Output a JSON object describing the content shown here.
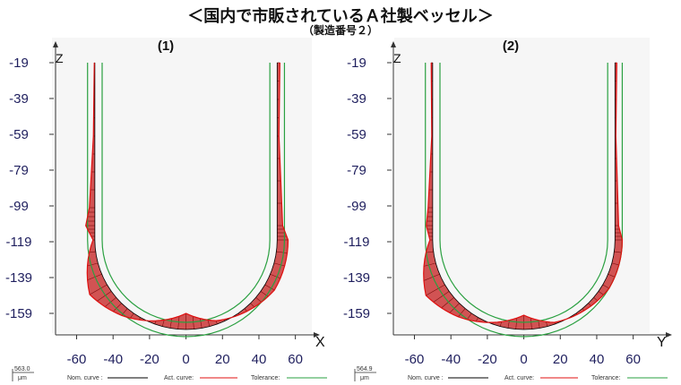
{
  "title": "＜国内で市販されているＡ社製ベッセル＞",
  "subtitle": "（製造番号２）",
  "colors": {
    "nominal": "#000000",
    "actual": "#e01010",
    "tolerance": "#2aa040",
    "text": "#1f1f5e",
    "deviation_fill": "#c41c1c"
  },
  "legend": {
    "nominal": "Nom. curve :",
    "actual": "Act. curve:",
    "tolerance": "Tolerance:"
  },
  "chart_data": [
    {
      "type": "line",
      "panel_label": "(1)",
      "xlabel": "X",
      "ylabel": "Z",
      "x_ticks": [
        -60,
        -40,
        -20,
        0,
        20,
        40,
        60
      ],
      "y_ticks": [
        -19,
        -39,
        -59,
        -79,
        -99,
        -119,
        -139,
        -159
      ],
      "xlim": [
        -75,
        70
      ],
      "ylim": [
        -170,
        -15
      ],
      "scale_value": "563.0",
      "scale_unit": "μm",
      "nominal_profile": {
        "radius": 50,
        "center_z": -118,
        "top_z": -19
      },
      "tolerance_offset": 4,
      "deviation_profile": [
        {
          "side": "left",
          "z": -19,
          "dev": 0.3
        },
        {
          "side": "left",
          "z": -60,
          "dev": 0.8
        },
        {
          "side": "left",
          "z": -100,
          "dev": 3
        },
        {
          "side": "left",
          "z": -110,
          "dev": 5
        },
        {
          "side": "left",
          "z": -118,
          "dev": 1
        },
        {
          "side": "arc",
          "angle": -60,
          "dev": 11
        },
        {
          "side": "arc",
          "angle": -40,
          "dev": 5
        },
        {
          "side": "arc",
          "angle": -20,
          "dev": -2
        },
        {
          "side": "arc",
          "angle": 0,
          "dev": -9
        },
        {
          "side": "arc",
          "angle": 20,
          "dev": -2
        },
        {
          "side": "arc",
          "angle": 40,
          "dev": 2
        },
        {
          "side": "arc",
          "angle": 60,
          "dev": 6
        },
        {
          "side": "right",
          "z": -118,
          "dev": 6
        },
        {
          "side": "right",
          "z": -110,
          "dev": 3
        },
        {
          "side": "right",
          "z": -60,
          "dev": 1
        },
        {
          "side": "right",
          "z": -19,
          "dev": 1.5
        }
      ]
    },
    {
      "type": "line",
      "panel_label": "(2)",
      "xlabel": "Y",
      "ylabel": "Z",
      "x_ticks": [
        -60,
        -40,
        -20,
        0,
        20,
        40,
        60
      ],
      "y_ticks": [
        -19,
        -39,
        -59,
        -79,
        -99,
        -119,
        -139,
        -159
      ],
      "xlim": [
        -75,
        70
      ],
      "ylim": [
        -170,
        -15
      ],
      "scale_value": "564.9",
      "scale_unit": "μm",
      "nominal_profile": {
        "radius": 50,
        "center_z": -118,
        "top_z": -19
      },
      "tolerance_offset": 4,
      "deviation_profile": [
        {
          "side": "left",
          "z": -19,
          "dev": 0.8
        },
        {
          "side": "left",
          "z": -60,
          "dev": 0.5
        },
        {
          "side": "left",
          "z": -100,
          "dev": 2.5
        },
        {
          "side": "left",
          "z": -110,
          "dev": 3.5
        },
        {
          "side": "left",
          "z": -118,
          "dev": 1.5
        },
        {
          "side": "arc",
          "angle": -60,
          "dev": 12
        },
        {
          "side": "arc",
          "angle": -40,
          "dev": 6
        },
        {
          "side": "arc",
          "angle": -20,
          "dev": -1
        },
        {
          "side": "arc",
          "angle": 0,
          "dev": -8
        },
        {
          "side": "arc",
          "angle": 20,
          "dev": -1
        },
        {
          "side": "arc",
          "angle": 40,
          "dev": 1.5
        },
        {
          "side": "arc",
          "angle": 60,
          "dev": 4
        },
        {
          "side": "right",
          "z": -118,
          "dev": 4
        },
        {
          "side": "right",
          "z": -110,
          "dev": 2
        },
        {
          "side": "right",
          "z": -60,
          "dev": 0.5
        },
        {
          "side": "right",
          "z": -19,
          "dev": 1
        }
      ]
    }
  ]
}
